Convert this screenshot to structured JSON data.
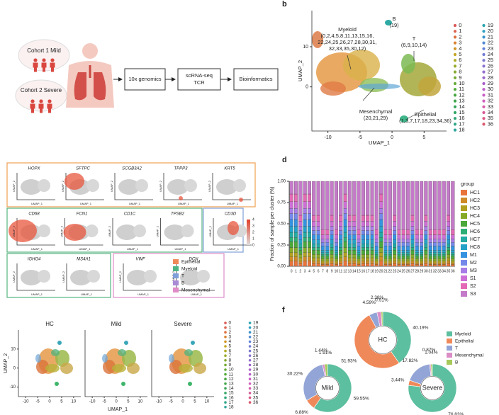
{
  "panel_labels": [
    "b",
    "d",
    "f"
  ],
  "workflow": {
    "cohorts": [
      "Cohort 1 Mild",
      "Cohort 2 Severe"
    ],
    "steps": [
      [
        "10x genomics"
      ],
      [
        "scRNA-seq",
        "TCR"
      ],
      [
        "Bioinformatics"
      ]
    ]
  },
  "umap": {
    "x_label": "UMAP_1",
    "y_label": "UMAP_2",
    "xlim": [
      -12.5,
      8.5
    ],
    "xticks": [
      -10,
      -5,
      0,
      5
    ],
    "ylim": [
      -11,
      19
    ],
    "yticks": [
      0,
      10
    ],
    "annotations": [
      {
        "lines": [
          "Myeloid",
          "(0,2,4,5,8,11,13,15,16,",
          "22,24,25,26,27,28,30,31,",
          "32,33,35,30,12)"
        ]
      },
      {
        "lines": [
          "B",
          "(19)"
        ]
      },
      {
        "lines": [
          "T",
          "(6,9,10,14)"
        ]
      },
      {
        "lines": [
          "Mesenchymal",
          "(20,21,29)"
        ]
      },
      {
        "lines": [
          "Epithelial",
          "(1,3,7,17,18,23,34,36)"
        ]
      }
    ],
    "clusters": [
      "0",
      "1",
      "2",
      "3",
      "4",
      "5",
      "6",
      "7",
      "8",
      "9",
      "10",
      "11",
      "12",
      "13",
      "14",
      "15",
      "16",
      "17",
      "18",
      "19",
      "20",
      "21",
      "22",
      "23",
      "24",
      "25",
      "26",
      "27",
      "28",
      "29",
      "30",
      "31",
      "32",
      "33",
      "34",
      "35",
      "36"
    ],
    "cluster_colors": [
      "hsl(0,65%,60%)",
      "hsl(10,65%,58%)",
      "hsl(19,70%,55%)",
      "hsl(29,70%,52%)",
      "hsl(39,70%,48%)",
      "hsl(49,70%,45%)",
      "hsl(58,65%,42%)",
      "hsl(68,60%,42%)",
      "hsl(78,55%,43%)",
      "hsl(88,55%,43%)",
      "hsl(97,50%,45%)",
      "hsl(107,50%,45%)",
      "hsl(117,45%,45%)",
      "hsl(126,45%,45%)",
      "hsl(136,50%,43%)",
      "hsl(146,55%,42%)",
      "hsl(156,55%,42%)",
      "hsl(165,55%,42%)",
      "hsl(175,55%,42%)",
      "hsl(185,60%,43%)",
      "hsl(195,60%,48%)",
      "hsl(204,60%,52%)",
      "hsl(214,60%,58%)",
      "hsl(224,60%,62%)",
      "hsl(234,55%,64%)",
      "hsl(243,50%,65%)",
      "hsl(253,50%,64%)",
      "hsl(263,50%,62%)",
      "hsl(272,50%,60%)",
      "hsl(282,50%,58%)",
      "hsl(292,50%,58%)",
      "hsl(302,50%,58%)",
      "hsl(311,55%,60%)",
      "hsl(321,60%,60%)",
      "hsl(331,62%,60%)",
      "hsl(340,65%,60%)",
      "hsl(350,65%,60%)"
    ]
  },
  "feature_plots": {
    "x_label": "UMAP_1",
    "y_label": "UMAP_2",
    "groups": [
      {
        "genes": [
          "HOPX",
          "SFTPC",
          "SCGB3A2",
          "TPPP3",
          "KRT5"
        ]
      },
      {
        "genes": [
          "CD68",
          "FCN1",
          "CD1C",
          "TPSB2"
        ]
      },
      {
        "genes": [
          "CD3D"
        ]
      },
      {
        "genes": [
          "IGHG4",
          "MS4A1"
        ]
      },
      {
        "genes": [
          "VWF",
          "DCN"
        ]
      }
    ],
    "colorbar_ticks": [
      0,
      1,
      2,
      3,
      4
    ],
    "legend": [
      {
        "name": "Epithelial",
        "color": "#f08a5a"
      },
      {
        "name": "Myeloid",
        "color": "#4fb585"
      },
      {
        "name": "T",
        "color": "#7f9fd8"
      },
      {
        "name": "B",
        "color": "#a98bd6"
      },
      {
        "name": "Mesenchymal",
        "color": "#e08cc8"
      }
    ]
  },
  "umap_by_condition": {
    "facets": [
      "HC",
      "Mild",
      "Severe"
    ],
    "x_label": "UMAP_1",
    "y_label": "UMAP_2",
    "xlim": [
      -13,
      13
    ],
    "xticks": [
      -10,
      -5,
      0,
      5,
      10
    ],
    "ylim": [
      -15,
      20
    ],
    "yticks": [
      -10,
      0,
      10
    ]
  },
  "chart_data": [
    {
      "type": "bar",
      "stacked": true,
      "y_label": "Fraction of sample per cluster (%)",
      "legend_title": "group",
      "categories": [
        "0",
        "1",
        "2",
        "3",
        "4",
        "5",
        "6",
        "7",
        "8",
        "9",
        "10",
        "11",
        "12",
        "13",
        "14",
        "15",
        "16",
        "17",
        "18",
        "19",
        "20",
        "21",
        "22",
        "23",
        "24",
        "25",
        "26",
        "27",
        "28",
        "29",
        "30",
        "31",
        "32",
        "33",
        "34",
        "35",
        "36"
      ],
      "ylim": [
        0,
        1
      ],
      "yticks": [
        {
          "value": 0,
          "label": "0.00"
        },
        {
          "value": 0.25,
          "label": "0.25"
        },
        {
          "value": 0.5,
          "label": "0.50"
        },
        {
          "value": 0.75,
          "label": "0.75"
        },
        {
          "value": 1,
          "label": "1.00"
        }
      ],
      "series": [
        {
          "name": "HC1",
          "color": "#e8743b",
          "values": [
            0.06,
            0.06,
            0.03,
            0.06,
            0.06,
            0.03,
            0.03,
            0.02,
            0.02,
            0.03,
            0.02,
            0.03,
            0.06,
            0.03,
            0.03,
            0.02,
            0.03,
            0.03,
            0.03,
            0.02,
            0.06,
            0.02,
            0.02,
            0.03,
            0.02,
            0.02,
            0.02,
            0.03,
            0.02,
            0.02,
            0.03,
            0.02,
            0.02,
            0.02,
            0.02,
            0.03,
            0.02
          ]
        },
        {
          "name": "HC2",
          "color": "#cf8b26",
          "values": [
            0.05,
            0.05,
            0.03,
            0.05,
            0.05,
            0.03,
            0.03,
            0.02,
            0.02,
            0.03,
            0.02,
            0.03,
            0.05,
            0.03,
            0.03,
            0.02,
            0.03,
            0.03,
            0.03,
            0.02,
            0.05,
            0.02,
            0.02,
            0.03,
            0.02,
            0.02,
            0.02,
            0.03,
            0.02,
            0.02,
            0.03,
            0.02,
            0.02,
            0.02,
            0.02,
            0.03,
            0.02
          ]
        },
        {
          "name": "HC3",
          "color": "#b2a020",
          "values": [
            0.05,
            0.05,
            0.04,
            0.05,
            0.05,
            0.04,
            0.04,
            0.02,
            0.02,
            0.04,
            0.02,
            0.04,
            0.05,
            0.04,
            0.04,
            0.02,
            0.04,
            0.04,
            0.04,
            0.02,
            0.05,
            0.02,
            0.02,
            0.04,
            0.02,
            0.02,
            0.02,
            0.04,
            0.02,
            0.02,
            0.04,
            0.02,
            0.02,
            0.02,
            0.02,
            0.04,
            0.02
          ]
        },
        {
          "name": "HC4",
          "color": "#86aa28",
          "values": [
            0.06,
            0.06,
            0.04,
            0.06,
            0.06,
            0.04,
            0.04,
            0.03,
            0.03,
            0.04,
            0.03,
            0.04,
            0.06,
            0.04,
            0.04,
            0.03,
            0.04,
            0.04,
            0.04,
            0.03,
            0.06,
            0.03,
            0.03,
            0.04,
            0.03,
            0.03,
            0.03,
            0.04,
            0.03,
            0.03,
            0.04,
            0.03,
            0.03,
            0.03,
            0.03,
            0.04,
            0.03
          ]
        },
        {
          "name": "HC5",
          "color": "#4aa83a",
          "values": [
            0.07,
            0.07,
            0.05,
            0.07,
            0.07,
            0.05,
            0.05,
            0.03,
            0.03,
            0.05,
            0.03,
            0.05,
            0.07,
            0.05,
            0.05,
            0.03,
            0.05,
            0.05,
            0.05,
            0.03,
            0.07,
            0.03,
            0.03,
            0.05,
            0.03,
            0.03,
            0.03,
            0.05,
            0.03,
            0.03,
            0.05,
            0.03,
            0.03,
            0.03,
            0.03,
            0.05,
            0.03
          ]
        },
        {
          "name": "HC6",
          "color": "#2dae76",
          "values": [
            0.05,
            0.05,
            0.03,
            0.05,
            0.05,
            0.03,
            0.03,
            0.02,
            0.02,
            0.03,
            0.02,
            0.03,
            0.05,
            0.03,
            0.03,
            0.02,
            0.03,
            0.03,
            0.03,
            0.02,
            0.05,
            0.02,
            0.02,
            0.03,
            0.02,
            0.02,
            0.02,
            0.03,
            0.02,
            0.02,
            0.03,
            0.02,
            0.02,
            0.02,
            0.02,
            0.03,
            0.02
          ]
        },
        {
          "name": "HC7",
          "color": "#22aaa3",
          "values": [
            0.06,
            0.06,
            0.04,
            0.06,
            0.06,
            0.04,
            0.04,
            0.02,
            0.02,
            0.04,
            0.02,
            0.04,
            0.06,
            0.04,
            0.04,
            0.02,
            0.04,
            0.04,
            0.04,
            0.02,
            0.06,
            0.02,
            0.02,
            0.04,
            0.02,
            0.02,
            0.02,
            0.04,
            0.02,
            0.02,
            0.04,
            0.02,
            0.02,
            0.02,
            0.02,
            0.04,
            0.02
          ]
        },
        {
          "name": "HC8",
          "color": "#25a2c8",
          "values": [
            0.07,
            0.07,
            0.05,
            0.07,
            0.07,
            0.05,
            0.05,
            0.03,
            0.03,
            0.05,
            0.03,
            0.05,
            0.07,
            0.05,
            0.05,
            0.03,
            0.05,
            0.05,
            0.05,
            0.03,
            0.07,
            0.03,
            0.03,
            0.05,
            0.03,
            0.03,
            0.03,
            0.05,
            0.03,
            0.03,
            0.05,
            0.03,
            0.03,
            0.03,
            0.03,
            0.05,
            0.03
          ]
        },
        {
          "name": "M1",
          "color": "#3592e0",
          "values": [
            0.08,
            0.08,
            0.06,
            0.08,
            0.08,
            0.06,
            0.06,
            0.05,
            0.05,
            0.06,
            0.05,
            0.06,
            0.08,
            0.06,
            0.06,
            0.05,
            0.06,
            0.06,
            0.06,
            0.05,
            0.08,
            0.05,
            0.05,
            0.06,
            0.05,
            0.05,
            0.05,
            0.06,
            0.05,
            0.05,
            0.06,
            0.05,
            0.05,
            0.05,
            0.05,
            0.06,
            0.05
          ]
        },
        {
          "name": "M2",
          "color": "#7488ea",
          "values": [
            0.07,
            0.07,
            0.05,
            0.07,
            0.07,
            0.05,
            0.05,
            0.04,
            0.04,
            0.05,
            0.04,
            0.05,
            0.07,
            0.05,
            0.05,
            0.04,
            0.05,
            0.05,
            0.05,
            0.04,
            0.07,
            0.04,
            0.04,
            0.05,
            0.04,
            0.04,
            0.04,
            0.05,
            0.04,
            0.04,
            0.05,
            0.04,
            0.04,
            0.04,
            0.04,
            0.05,
            0.04
          ]
        },
        {
          "name": "M3",
          "color": "#a77ce6",
          "values": [
            0.06,
            0.06,
            0.05,
            0.06,
            0.06,
            0.05,
            0.05,
            0.04,
            0.04,
            0.05,
            0.04,
            0.05,
            0.06,
            0.05,
            0.05,
            0.04,
            0.05,
            0.05,
            0.05,
            0.04,
            0.06,
            0.04,
            0.04,
            0.05,
            0.04,
            0.04,
            0.04,
            0.05,
            0.04,
            0.04,
            0.05,
            0.04,
            0.04,
            0.04,
            0.04,
            0.05,
            0.04
          ]
        },
        {
          "name": "S1",
          "color": "#cd6fd6",
          "values": [
            0.08,
            0.08,
            0.06,
            0.08,
            0.08,
            0.06,
            0.06,
            0.05,
            0.05,
            0.06,
            0.05,
            0.06,
            0.08,
            0.06,
            0.06,
            0.05,
            0.06,
            0.06,
            0.06,
            0.05,
            0.08,
            0.05,
            0.05,
            0.06,
            0.05,
            0.05,
            0.05,
            0.06,
            0.05,
            0.05,
            0.06,
            0.05,
            0.05,
            0.05,
            0.05,
            0.06,
            0.05
          ]
        },
        {
          "name": "S2",
          "color": "#e36ab4",
          "values": [
            0.09,
            0.09,
            0.07,
            0.09,
            0.09,
            0.07,
            0.07,
            0.06,
            0.06,
            0.07,
            0.06,
            0.07,
            0.09,
            0.07,
            0.07,
            0.06,
            0.07,
            0.07,
            0.07,
            0.06,
            0.09,
            0.06,
            0.06,
            0.07,
            0.06,
            0.06,
            0.06,
            0.07,
            0.06,
            0.06,
            0.07,
            0.06,
            0.06,
            0.06,
            0.06,
            0.07,
            0.06
          ]
        },
        {
          "name": "S3",
          "color": "#c47ac8",
          "values": [
            0.15,
            0.15,
            0.4,
            0.15,
            0.15,
            0.4,
            0.4,
            0.57,
            0.57,
            0.4,
            0.57,
            0.4,
            0.15,
            0.4,
            0.4,
            0.57,
            0.4,
            0.4,
            0.4,
            0.57,
            0.15,
            0.57,
            0.57,
            0.4,
            0.57,
            0.57,
            0.57,
            0.4,
            0.57,
            0.57,
            0.4,
            0.57,
            0.57,
            0.57,
            0.57,
            0.4,
            0.57
          ]
        }
      ]
    },
    {
      "type": "pie",
      "name": "HC",
      "categories": [
        "Myeloid",
        "Epithelial",
        "T",
        "Mesenchymal",
        "B"
      ],
      "colors": [
        "#5cbf9f",
        "#f0895a",
        "#93a5d6",
        "#db8dc6",
        "#a6c95a"
      ],
      "values": [
        40.19,
        51.93,
        4.59,
        2.38,
        0.91
      ],
      "value_labels": [
        "40.19%",
        "51.93%",
        "4.59%",
        "2.38%",
        "0.91%"
      ]
    },
    {
      "type": "pie",
      "name": "Mild",
      "categories": [
        "Myeloid",
        "Epithelial",
        "T",
        "Mesenchymal",
        "B"
      ],
      "colors": [
        "#5cbf9f",
        "#f0895a",
        "#93a5d6",
        "#db8dc6",
        "#a6c95a"
      ],
      "values": [
        59.55,
        6.88,
        30.22,
        1.44,
        1.91
      ],
      "value_labels": [
        "59.55%",
        "6.88%",
        "30.22%",
        "1.44%",
        "1.91%"
      ]
    },
    {
      "type": "pie",
      "name": "Severe",
      "categories": [
        "Myeloid",
        "Epithelial",
        "T",
        "Mesenchymal",
        "B"
      ],
      "colors": [
        "#5cbf9f",
        "#f0895a",
        "#93a5d6",
        "#db8dc6",
        "#a6c95a"
      ],
      "values": [
        76.83,
        3.44,
        17.82,
        0.87,
        1.04
      ],
      "value_labels": [
        "76.83%",
        "3.44%",
        "17.82%",
        "0.87%",
        "1.04%"
      ]
    }
  ]
}
